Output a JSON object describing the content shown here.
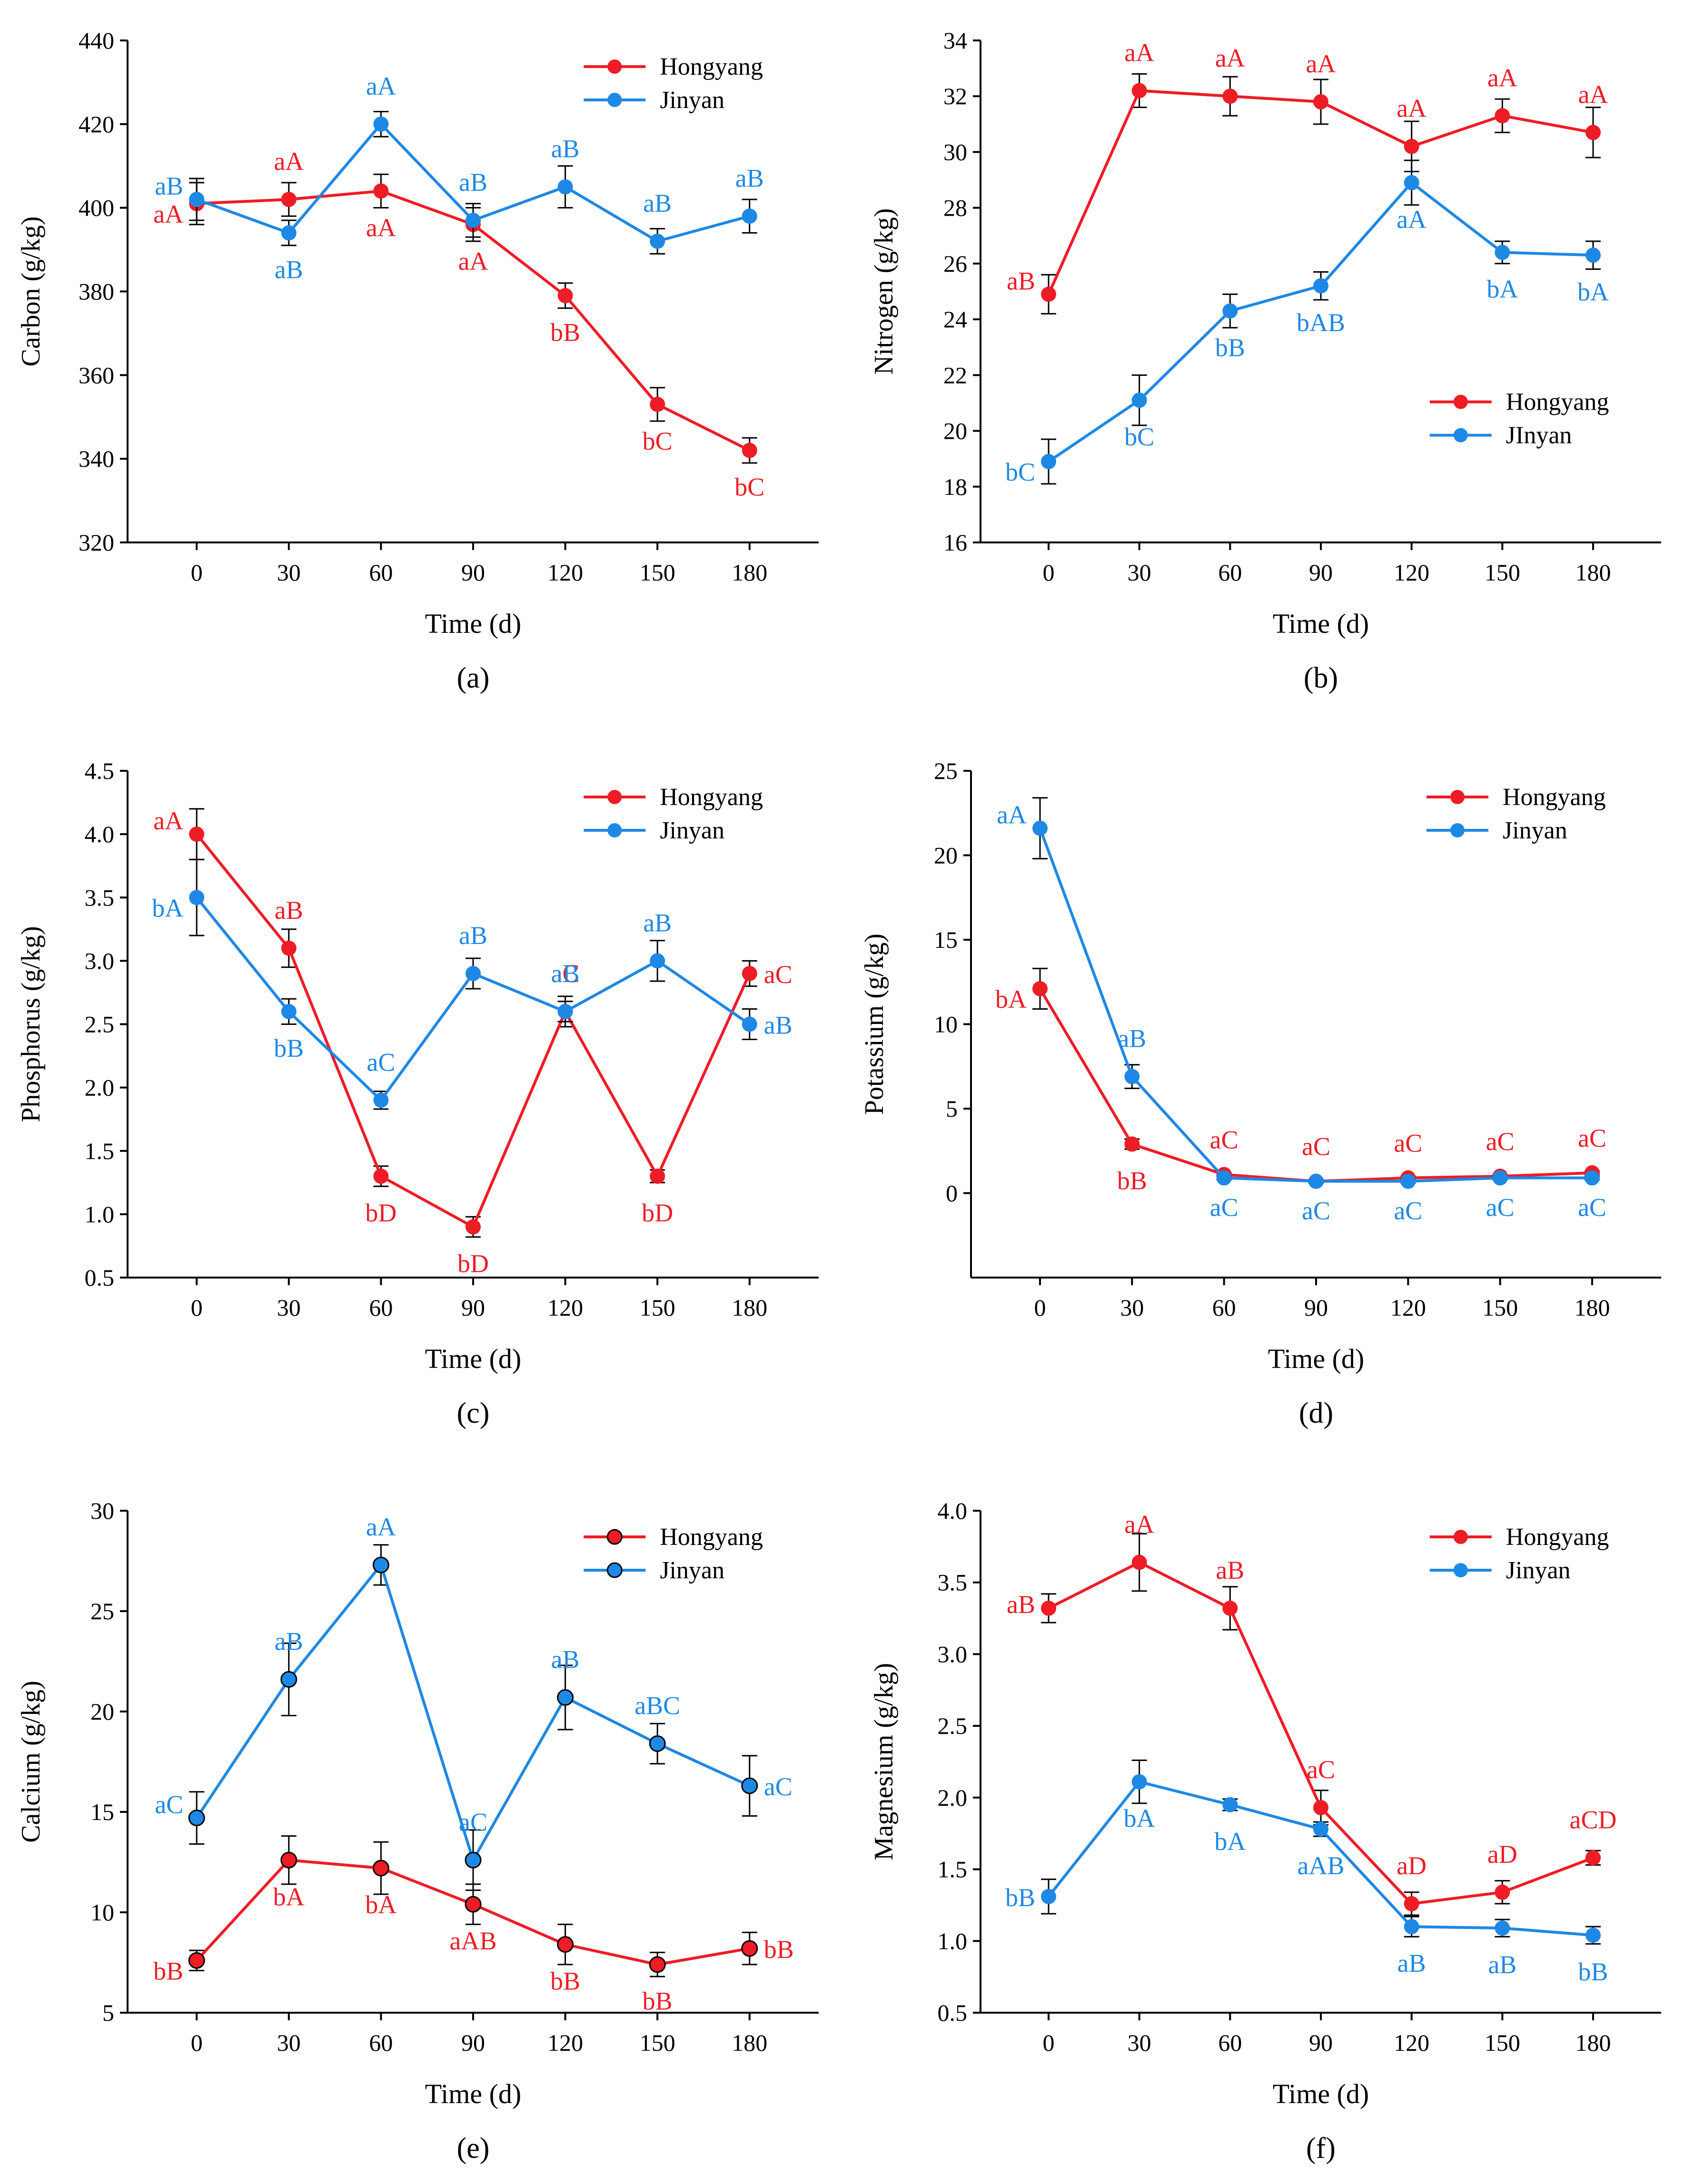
{
  "chart_data": [
    {
      "panel": "(a)",
      "type": "line",
      "ylabel": "Carbon (g/kg)",
      "xlabel": "Time (d)",
      "x": [
        0,
        30,
        60,
        90,
        120,
        150,
        180
      ],
      "xticks": [
        "0",
        "30",
        "60",
        "90",
        "120",
        "150",
        "180"
      ],
      "ylim": [
        320,
        440
      ],
      "yticks": [
        "320",
        "340",
        "360",
        "380",
        "400",
        "420",
        "440"
      ],
      "legend_position": "top-right",
      "series": [
        {
          "name": "Hongyang",
          "color": "#ee1c25",
          "values": [
            401,
            402,
            404,
            396,
            379,
            353,
            342
          ],
          "errors": [
            5,
            4,
            4,
            4,
            3,
            4,
            3
          ],
          "labels": [
            "aA",
            "aA",
            "aA",
            "aA",
            "bB",
            "bC",
            "bC"
          ]
        },
        {
          "name": "Jinyan",
          "color": "#1e88e5",
          "values": [
            402,
            394,
            420,
            397,
            405,
            392,
            398
          ],
          "errors": [
            5,
            3,
            3,
            4,
            5,
            3,
            4
          ],
          "labels": [
            "aB",
            "aB",
            "aA",
            "aB",
            "aB",
            "aB",
            "aB"
          ]
        }
      ]
    },
    {
      "panel": "(b)",
      "type": "line",
      "ylabel": "Nitrogen (g/kg)",
      "xlabel": "Time (d)",
      "x": [
        0,
        30,
        60,
        90,
        120,
        150,
        180
      ],
      "xticks": [
        "0",
        "30",
        "60",
        "90",
        "120",
        "150",
        "180"
      ],
      "ylim": [
        16,
        34
      ],
      "yticks": [
        "16",
        "18",
        "20",
        "22",
        "24",
        "26",
        "28",
        "30",
        "32",
        "34"
      ],
      "legend_position": "lower-right",
      "series": [
        {
          "name": "Hongyang",
          "color": "#ee1c25",
          "values": [
            24.9,
            32.2,
            32.0,
            31.8,
            30.2,
            31.3,
            30.7
          ],
          "errors": [
            0.7,
            0.6,
            0.7,
            0.8,
            0.9,
            0.6,
            0.9
          ],
          "labels": [
            "aB",
            "aA",
            "aA",
            "aA",
            "aA",
            "aA",
            "aA"
          ]
        },
        {
          "name": "JInyan",
          "color": "#1e88e5",
          "values": [
            18.9,
            21.1,
            24.3,
            25.2,
            28.9,
            26.4,
            26.3
          ],
          "errors": [
            0.8,
            0.9,
            0.6,
            0.5,
            0.8,
            0.4,
            0.5
          ],
          "labels": [
            "bC",
            "bC",
            "bB",
            "bAB",
            "aA",
            "bA",
            "bA"
          ]
        }
      ]
    },
    {
      "panel": "(c)",
      "type": "line",
      "ylabel": "Phosphorus (g/kg)",
      "xlabel": "Time (d)",
      "x": [
        0,
        30,
        60,
        90,
        120,
        150,
        180
      ],
      "xticks": [
        "0",
        "30",
        "60",
        "90",
        "120",
        "150",
        "180"
      ],
      "ylim": [
        0.5,
        4.5
      ],
      "yticks": [
        "0.5",
        "1.0",
        "1.5",
        "2.0",
        "2.5",
        "3.0",
        "3.5",
        "4.0",
        "4.5"
      ],
      "legend_position": "top-right",
      "series": [
        {
          "name": "Hongyang",
          "color": "#ee1c25",
          "values": [
            4.0,
            3.1,
            1.3,
            0.9,
            2.6,
            1.3,
            2.9
          ],
          "errors": [
            0.2,
            0.15,
            0.08,
            0.08,
            0.12,
            0.05,
            0.1
          ],
          "labels": [
            "aA",
            "aB",
            "bD",
            "bD",
            "aC",
            "bD",
            "aC"
          ]
        },
        {
          "name": "Jinyan",
          "color": "#1e88e5",
          "values": [
            3.5,
            2.6,
            1.9,
            2.9,
            2.6,
            3.0,
            2.5
          ],
          "errors": [
            0.3,
            0.1,
            0.07,
            0.12,
            0.08,
            0.16,
            0.12
          ],
          "labels": [
            "bA",
            "bB",
            "aC",
            "aB",
            "aB",
            "aB",
            "aB"
          ]
        }
      ]
    },
    {
      "panel": "(d)",
      "type": "line",
      "ylabel": "Potassium (g/kg)",
      "xlabel": "Time (d)",
      "x": [
        0,
        30,
        60,
        90,
        120,
        150,
        180
      ],
      "xticks": [
        "0",
        "30",
        "60",
        "90",
        "120",
        "150",
        "180"
      ],
      "ylim": [
        -5,
        25
      ],
      "yticks": [
        "0",
        "5",
        "10",
        "15",
        "20",
        "25"
      ],
      "legend_position": "top-right",
      "series": [
        {
          "name": "Hongyang",
          "color": "#ee1c25",
          "values": [
            12.1,
            2.9,
            1.1,
            0.7,
            0.9,
            1.0,
            1.2
          ],
          "errors": [
            1.2,
            0.3,
            0.1,
            0.1,
            0.1,
            0.1,
            0.1
          ],
          "labels": [
            "bA",
            "bB",
            "aC",
            "aC",
            "aC",
            "aC",
            "aC"
          ]
        },
        {
          "name": "Jinyan",
          "color": "#1e88e5",
          "values": [
            21.6,
            6.9,
            0.9,
            0.7,
            0.7,
            0.9,
            0.9
          ],
          "errors": [
            1.8,
            0.7,
            0.1,
            0.1,
            0.1,
            0.1,
            0.1
          ],
          "labels": [
            "aA",
            "aB",
            "aC",
            "aC",
            "aC",
            "aC",
            "aC"
          ]
        }
      ]
    },
    {
      "panel": "(e)",
      "type": "line",
      "ylabel": "Calcium (g/kg)",
      "xlabel": "Time (d)",
      "x": [
        0,
        30,
        60,
        90,
        120,
        150,
        180
      ],
      "xticks": [
        "0",
        "30",
        "60",
        "90",
        "120",
        "150",
        "180"
      ],
      "ylim": [
        5,
        30
      ],
      "yticks": [
        "5",
        "10",
        "15",
        "20",
        "25",
        "30"
      ],
      "legend_position": "top-right",
      "series": [
        {
          "name": "Hongyang",
          "color": "#ee1c25",
          "values": [
            7.6,
            12.6,
            12.2,
            10.4,
            8.4,
            7.4,
            8.2
          ],
          "errors": [
            0.5,
            1.2,
            1.3,
            1.0,
            1.0,
            0.6,
            0.8
          ],
          "labels": [
            "bB",
            "bA",
            "bA",
            "aAB",
            "bB",
            "bB",
            "bB"
          ]
        },
        {
          "name": "Jinyan",
          "color": "#1e88e5",
          "values": [
            14.7,
            21.6,
            27.3,
            12.6,
            20.7,
            18.4,
            16.3
          ],
          "errors": [
            1.3,
            1.8,
            1.0,
            1.5,
            1.6,
            1.0,
            1.5
          ],
          "labels": [
            "aC",
            "aB",
            "aA",
            "aC",
            "aB",
            "aBC",
            "aC"
          ]
        }
      ]
    },
    {
      "panel": "(f)",
      "type": "line",
      "ylabel": "Magnesium (g/kg)",
      "xlabel": "Time (d)",
      "x": [
        0,
        30,
        60,
        90,
        120,
        150,
        180
      ],
      "xticks": [
        "0",
        "30",
        "60",
        "90",
        "120",
        "150",
        "180"
      ],
      "ylim": [
        0.5,
        4.0
      ],
      "yticks": [
        "0.5",
        "1.0",
        "1.5",
        "2.0",
        "2.5",
        "3.0",
        "3.5",
        "4.0"
      ],
      "legend_position": "top-right",
      "series": [
        {
          "name": "Hongyang",
          "color": "#ee1c25",
          "values": [
            3.32,
            3.64,
            3.32,
            1.93,
            1.26,
            1.34,
            1.58
          ],
          "errors": [
            0.1,
            0.2,
            0.15,
            0.12,
            0.08,
            0.08,
            0.05
          ],
          "labels": [
            "aB",
            "aA",
            "aB",
            "aC",
            "aD",
            "aD",
            "aCD"
          ]
        },
        {
          "name": "Jinyan",
          "color": "#1e88e5",
          "values": [
            1.31,
            2.11,
            1.95,
            1.78,
            1.1,
            1.09,
            1.04
          ],
          "errors": [
            0.12,
            0.15,
            0.04,
            0.05,
            0.07,
            0.06,
            0.06
          ],
          "labels": [
            "bB",
            "bA",
            "bA",
            "aAB",
            "aB",
            "aB",
            "bB"
          ]
        }
      ]
    }
  ]
}
